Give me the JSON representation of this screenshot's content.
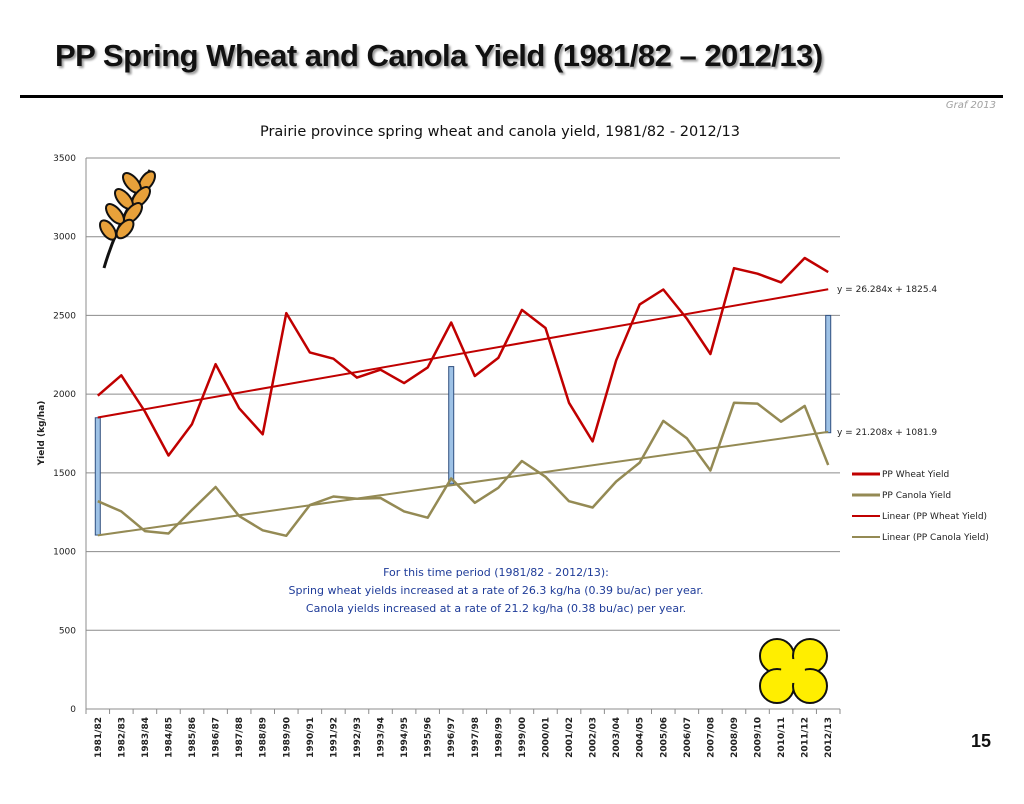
{
  "slide": {
    "title": "PP Spring Wheat and Canola Yield (1981/82 – 2012/13)",
    "credit": "Graf 2013",
    "page_number": "15"
  },
  "chart_data": {
    "type": "line",
    "title": "Prairie province spring wheat and canola yield, 1981/82 - 2012/13",
    "ylabel": "Yield (kg/ha)",
    "xlabel": "",
    "ylim": [
      0,
      3500
    ],
    "yticks": [
      0,
      500,
      1000,
      1500,
      2000,
      2500,
      3000,
      3500
    ],
    "grid": true,
    "legend_position": "right",
    "categories": [
      "1981/82",
      "1982/83",
      "1983/84",
      "1984/85",
      "1985/86",
      "1986/87",
      "1987/88",
      "1988/89",
      "1989/90",
      "1990/91",
      "1991/92",
      "1992/93",
      "1993/94",
      "1994/95",
      "1995/96",
      "1996/97",
      "1997/98",
      "1998/99",
      "1999/00",
      "2000/01",
      "2001/02",
      "2002/03",
      "2003/04",
      "2004/05",
      "2005/06",
      "2006/07",
      "2007/08",
      "2008/09",
      "2009/10",
      "2010/11",
      "2011/12",
      "2012/13"
    ],
    "series": [
      {
        "name": "PP Wheat Yield",
        "color": "#c00000",
        "values": [
          1990,
          2120,
          1890,
          1610,
          1810,
          2190,
          1910,
          1745,
          2515,
          2265,
          2225,
          2105,
          2155,
          2070,
          2170,
          2455,
          2115,
          2230,
          2535,
          2420,
          1945,
          1700,
          2215,
          2570,
          2665,
          2480,
          2255,
          2800,
          2765,
          2710,
          2865,
          2775
        ]
      },
      {
        "name": "PP Canola Yield",
        "color": "#948a54",
        "values": [
          1320,
          1255,
          1130,
          1115,
          1265,
          1410,
          1225,
          1135,
          1100,
          1295,
          1350,
          1335,
          1340,
          1255,
          1215,
          1465,
          1310,
          1405,
          1575,
          1475,
          1320,
          1280,
          1445,
          1565,
          1830,
          1720,
          1515,
          1945,
          1940,
          1825,
          1925,
          1550
        ]
      }
    ],
    "trendlines": [
      {
        "name": "Linear (PP Wheat Yield)",
        "of": "PP Wheat Yield",
        "color": "#c00000",
        "slope": 26.284,
        "intercept": 1825.4,
        "equation": "y = 26.284x + 1825.4"
      },
      {
        "name": "Linear (PP Canola Yield)",
        "of": "PP Canola Yield",
        "color": "#948a54",
        "slope": 21.208,
        "intercept": 1081.9,
        "equation": "y = 21.208x + 1081.9"
      }
    ],
    "gap_bars": [
      {
        "category": "1981/82",
        "from": 1105,
        "to": 1850
      },
      {
        "category": "1996/97",
        "from": 1430,
        "to": 2175
      },
      {
        "category": "2012/13",
        "from": 1755,
        "to": 2500
      }
    ],
    "annotation_lines": [
      "For this time period (1981/82 - 2012/13):",
      "Spring wheat yields increased at a rate of 26.3 kg/ha (0.39 bu/ac) per year.",
      "Canola yields increased at a rate of 21.2 kg/ha (0.38 bu/ac) per year."
    ],
    "annotation_color": "#1f3c99",
    "icons": [
      "wheat-icon",
      "canola-flower-icon"
    ]
  }
}
